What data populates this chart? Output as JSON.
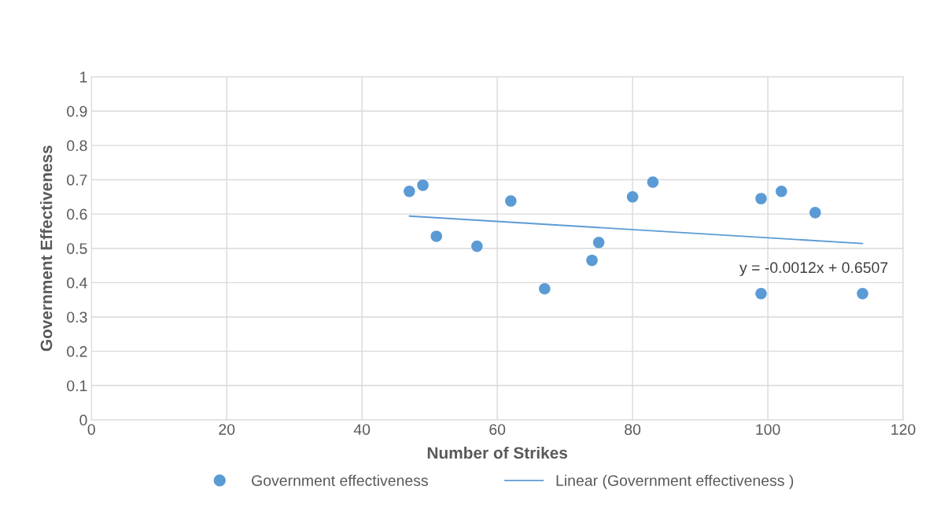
{
  "chart_data": {
    "type": "scatter",
    "xlabel": "Number of Strikes",
    "ylabel": "Government Effectiveness",
    "series": [
      {
        "name": "Government effectiveness",
        "color": "#5b9bd5",
        "marker": "circle",
        "x": [
          47,
          49,
          51,
          57,
          62,
          67,
          74,
          75,
          80,
          83,
          99,
          99,
          102,
          107,
          114
        ],
        "values": [
          0.666,
          0.684,
          0.535,
          0.506,
          0.638,
          0.382,
          0.465,
          0.517,
          0.65,
          0.693,
          0.645,
          0.368,
          0.666,
          0.604,
          0.368
        ]
      },
      {
        "name": "Linear (Government effectiveness )",
        "type": "line",
        "color": "#5b9bd5",
        "line_style": "solid",
        "x": [
          47,
          114
        ],
        "values": [
          0.594,
          0.514
        ]
      }
    ],
    "annotations": [
      "y = -0.0012x + 0.6507"
    ],
    "xlim": [
      0,
      120
    ],
    "xticks": [
      0,
      20,
      40,
      60,
      80,
      100,
      120
    ],
    "ylim": [
      0,
      1
    ],
    "yticks": [
      0,
      0.1,
      0.2,
      0.3,
      0.4,
      0.5,
      0.6,
      0.7,
      0.8,
      0.9,
      1
    ],
    "grid": true,
    "legend": "bottom"
  }
}
